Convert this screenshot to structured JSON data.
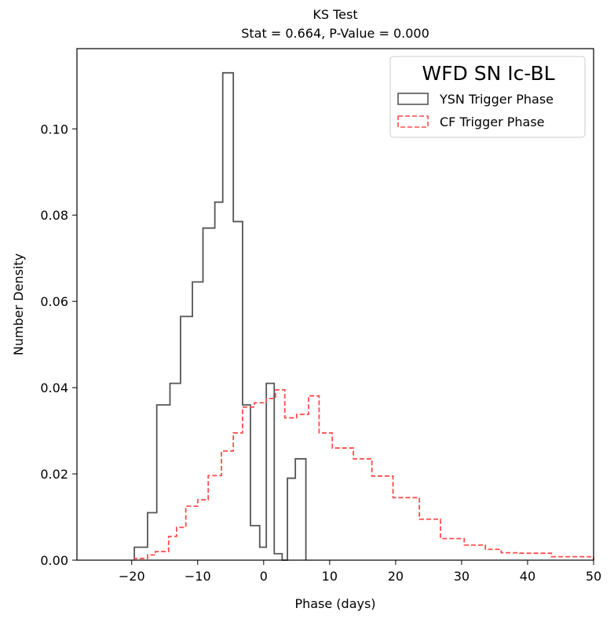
{
  "chart_data": {
    "type": "histogram-step",
    "title": "KS Test",
    "subtitle": "Stat = 0.664, P-Value = 0.000",
    "xlabel": "Phase (days)",
    "ylabel": "Number Density",
    "xlim": [
      -28.3,
      50
    ],
    "ylim": [
      0,
      0.1186
    ],
    "xticks": [
      -20,
      -10,
      0,
      10,
      20,
      30,
      40,
      50
    ],
    "xtick_labels": [
      "−20",
      "−10",
      "0",
      "10",
      "20",
      "30",
      "40",
      "50"
    ],
    "yticks": [
      0.0,
      0.02,
      0.04,
      0.06,
      0.08,
      0.1
    ],
    "ytick_labels": [
      "0.00",
      "0.02",
      "0.04",
      "0.06",
      "0.08",
      "0.10"
    ],
    "grid": false,
    "legend": {
      "title": "WFD SN Ic-BL",
      "location": "top-right",
      "entries": [
        "YSN Trigger Phase",
        "CF Trigger Phase"
      ]
    },
    "series": [
      {
        "name": "YSN Trigger Phase",
        "style": "solid",
        "color": "#555555",
        "bin_edges": [
          -19.6,
          -17.6,
          -16.2,
          -14.2,
          -12.6,
          -10.8,
          -9.2,
          -7.4,
          -6.2,
          -4.6,
          -3.2,
          -2.0,
          -0.6,
          0.4,
          1.6,
          2.8,
          3.6,
          4.8,
          6.4
        ],
        "values": [
          0.003,
          0.011,
          0.036,
          0.041,
          0.0565,
          0.0645,
          0.077,
          0.083,
          0.113,
          0.0785,
          0.036,
          0.008,
          0.003,
          0.041,
          0.0015,
          0.0,
          0.019,
          0.0235
        ]
      },
      {
        "name": "CF Trigger Phase",
        "style": "dashed",
        "color": "#ff4d4d",
        "bin_edges": [
          -19.6,
          -17.6,
          -16.4,
          -14.4,
          -13.2,
          -11.8,
          -10.0,
          -8.4,
          -6.4,
          -4.6,
          -3.2,
          -1.4,
          0.4,
          1.8,
          3.2,
          5.0,
          6.8,
          8.4,
          10.4,
          13.6,
          16.4,
          19.6,
          23.6,
          26.8,
          30.4,
          33.6,
          36.0,
          38.8,
          43.6,
          50.0
        ],
        "values": [
          0.0004,
          0.0012,
          0.002,
          0.0055,
          0.0076,
          0.0125,
          0.014,
          0.0196,
          0.0253,
          0.0295,
          0.0355,
          0.0365,
          0.0375,
          0.0395,
          0.033,
          0.0338,
          0.0381,
          0.0295,
          0.026,
          0.0235,
          0.0195,
          0.0145,
          0.0095,
          0.005,
          0.0035,
          0.0025,
          0.0017,
          0.0016,
          0.0008
        ]
      }
    ]
  }
}
